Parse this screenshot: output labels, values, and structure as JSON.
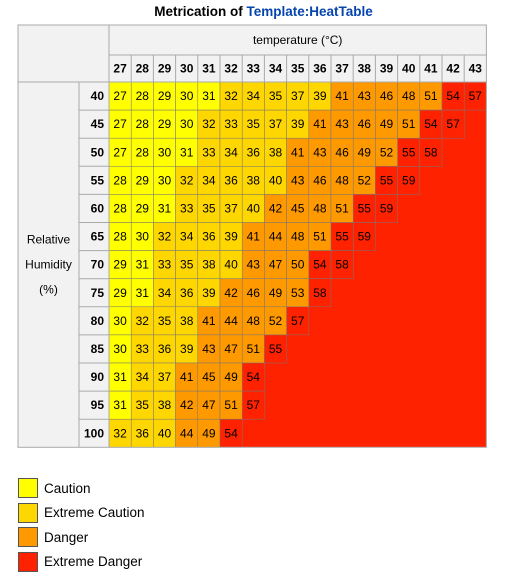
{
  "caption": {
    "prefix": "Metrication of ",
    "link": "Template:HeatTable"
  },
  "colors": {
    "caution": "#ffff00",
    "extreme_caution": "#ffd700",
    "danger": "#ff9900",
    "extreme_danger": "#ff2200",
    "header_bg": "#f2f2f2",
    "grid": "#aaaaaa"
  },
  "legend": [
    {
      "label": "Caution",
      "color": "#ffff00"
    },
    {
      "label": "Extreme Caution",
      "color": "#ffd700"
    },
    {
      "label": "Danger",
      "color": "#ff9900"
    },
    {
      "label": "Extreme Danger",
      "color": "#ff2200"
    }
  ],
  "chart_data": {
    "type": "heatmap",
    "column_header": "temperature (°C)",
    "row_header": "Relative Humidity (%)",
    "temperatures": [
      27,
      28,
      29,
      30,
      31,
      32,
      33,
      34,
      35,
      36,
      37,
      38,
      39,
      40,
      41,
      42,
      43
    ],
    "humidities": [
      40,
      45,
      50,
      55,
      60,
      65,
      70,
      75,
      80,
      85,
      90,
      95,
      100
    ],
    "thresholds": {
      "extreme_caution": 32,
      "danger": 41,
      "extreme_danger": 54
    },
    "values": [
      [
        27,
        28,
        29,
        30,
        31,
        32,
        34,
        35,
        37,
        39,
        41,
        43,
        46,
        48,
        51,
        54,
        57
      ],
      [
        27,
        28,
        29,
        30,
        32,
        33,
        35,
        37,
        39,
        41,
        43,
        46,
        49,
        51,
        54,
        57
      ],
      [
        27,
        28,
        30,
        31,
        33,
        34,
        36,
        38,
        41,
        43,
        46,
        49,
        52,
        55,
        58
      ],
      [
        28,
        29,
        30,
        32,
        34,
        36,
        38,
        40,
        43,
        46,
        48,
        52,
        55,
        59
      ],
      [
        28,
        29,
        31,
        33,
        35,
        37,
        40,
        42,
        45,
        48,
        51,
        55,
        59
      ],
      [
        28,
        30,
        32,
        34,
        36,
        39,
        41,
        44,
        48,
        51,
        55,
        59
      ],
      [
        29,
        31,
        33,
        35,
        38,
        40,
        43,
        47,
        50,
        54,
        58
      ],
      [
        29,
        31,
        34,
        36,
        39,
        42,
        46,
        49,
        53,
        58
      ],
      [
        30,
        32,
        35,
        38,
        41,
        44,
        48,
        52,
        57
      ],
      [
        30,
        33,
        36,
        39,
        43,
        47,
        51,
        55
      ],
      [
        31,
        34,
        37,
        41,
        45,
        49,
        54
      ],
      [
        31,
        35,
        38,
        42,
        47,
        51,
        57
      ],
      [
        32,
        36,
        40,
        44,
        49,
        54
      ]
    ]
  }
}
